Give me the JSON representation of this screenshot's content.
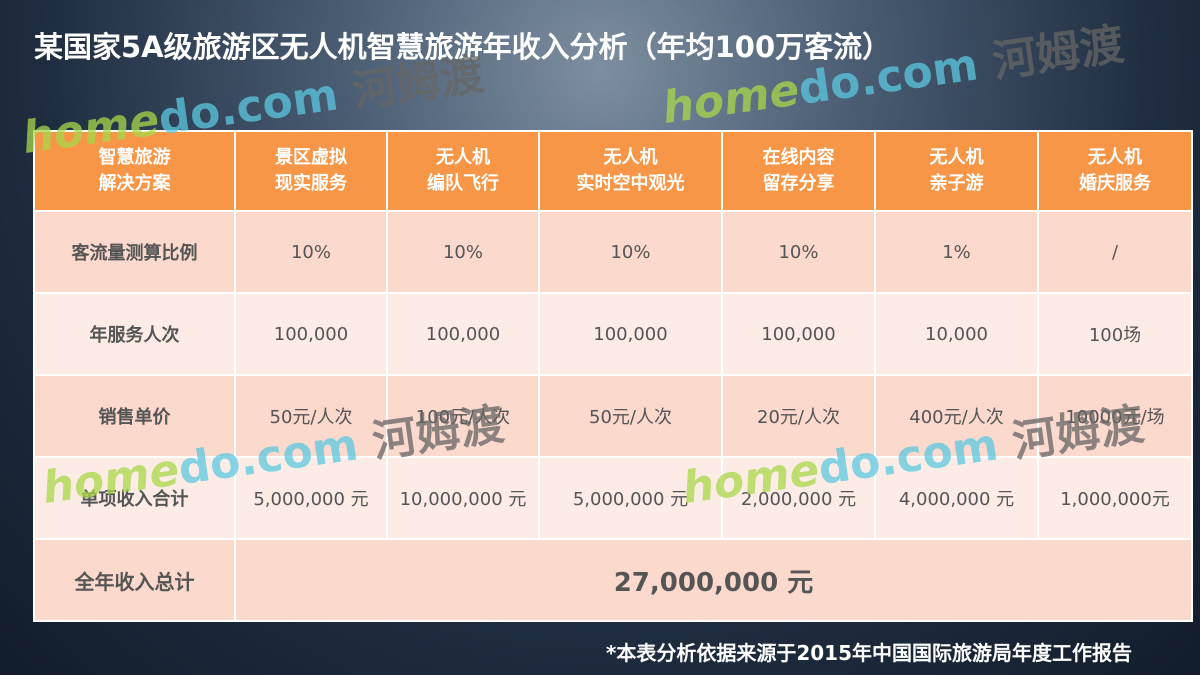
{
  "title": "某国家5A级旅游区无人机智慧旅游年收入分析（年均100万客流）",
  "table": {
    "headers": [
      "智慧旅游\n解决方案",
      "景区虚拟\n现实服务",
      "无人机\n编队飞行",
      "无人机\n实时空中观光",
      "在线内容\n留存分享",
      "无人机\n亲子游",
      "无人机\n婚庆服务"
    ],
    "rows": [
      [
        "客流量测算比例",
        "10%",
        "10%",
        "10%",
        "10%",
        "1%",
        "/"
      ],
      [
        "年服务人次",
        "100,000",
        "100,000",
        "100,000",
        "100,000",
        "10,000",
        "100场"
      ],
      [
        "销售单价",
        "50元/人次",
        "100元/人次",
        "50元/人次",
        "20元/人次",
        "400元/人次",
        "10000元/场"
      ],
      [
        "单项收入合计",
        "5,000,000 元",
        "10,000,000 元",
        "5,000,000 元",
        "2,000,000 元",
        "4,000,000 元",
        "1,000,000元"
      ]
    ],
    "total_label": "全年收入总计",
    "total_value": "27,000,000 元"
  },
  "footnote": "*本表分析依据来源于2015年中国国际旅游局年度工作报告",
  "watermark": {
    "latin_a": "home",
    "latin_b": "do.com",
    "chinese": "河姆渡"
  },
  "colors": {
    "header": "#F79646",
    "row_dark": "#FBD9CC",
    "row_light": "#FDECE6"
  }
}
